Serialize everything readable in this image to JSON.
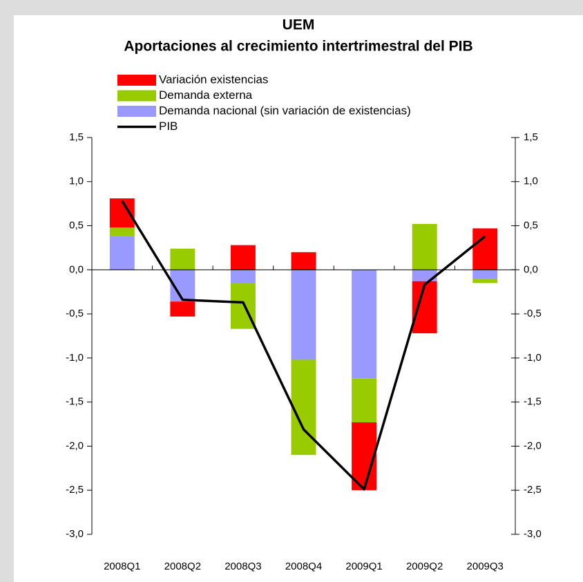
{
  "chart_data": {
    "type": "bar",
    "stacked": true,
    "title": "UEM",
    "subtitle": "Aportaciones al crecimiento intertrimestral del PIB",
    "categories": [
      "2008Q1",
      "2008Q2",
      "2008Q3",
      "2008Q4",
      "2009Q1",
      "2009Q2",
      "2009Q3"
    ],
    "series": [
      {
        "name": "Demanda nacional (sin variación de existencias)",
        "color": "#9999ff",
        "values": [
          0.38,
          -0.36,
          -0.15,
          -1.02,
          -1.23,
          -0.13,
          -0.1
        ]
      },
      {
        "name": "Demanda externa",
        "color": "#99cc00",
        "values": [
          0.1,
          0.24,
          -0.52,
          -1.08,
          -0.5,
          0.52,
          -0.05
        ]
      },
      {
        "name": "Variación existencias",
        "color": "#ff0000",
        "values": [
          0.33,
          -0.17,
          0.28,
          0.2,
          -0.77,
          -0.59,
          0.47
        ]
      },
      {
        "name": "PIB",
        "type": "line",
        "color": "#000000",
        "values": [
          0.78,
          -0.34,
          -0.37,
          -1.81,
          -2.49,
          -0.17,
          0.38
        ]
      }
    ],
    "ylim": [
      -3.0,
      1.5
    ],
    "yticks": [
      {
        "value": 1.5,
        "label": "1,5"
      },
      {
        "value": 1.0,
        "label": "1,0"
      },
      {
        "value": 0.5,
        "label": "0,5"
      },
      {
        "value": 0.0,
        "label": "0,0"
      },
      {
        "value": -0.5,
        "label": "-0,5"
      },
      {
        "value": -1.0,
        "label": "-1,0"
      },
      {
        "value": -1.5,
        "label": "-1,5"
      },
      {
        "value": -2.0,
        "label": "-2,0"
      },
      {
        "value": -2.5,
        "label": "-2,5"
      },
      {
        "value": -3.0,
        "label": "-3,0"
      }
    ],
    "y2lim": [
      -3.0,
      1.5
    ],
    "y2ticks": [
      {
        "value": 1.5,
        "label": "1,5"
      },
      {
        "value": 1.0,
        "label": "1,0"
      },
      {
        "value": 0.5,
        "label": "0,5"
      },
      {
        "value": 0.0,
        "label": "0,0"
      },
      {
        "value": -0.5,
        "label": "-0,5"
      },
      {
        "value": -1.0,
        "label": "-1,0"
      },
      {
        "value": -1.5,
        "label": "-1,5"
      },
      {
        "value": -2.0,
        "label": "-2,0"
      },
      {
        "value": -2.5,
        "label": "-2,5"
      },
      {
        "value": -3.0,
        "label": "-3,0"
      }
    ],
    "grid": false,
    "legend": "top"
  }
}
